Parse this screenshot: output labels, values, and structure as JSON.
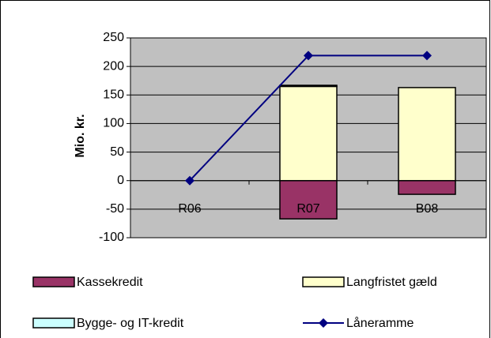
{
  "chart_data": {
    "type": "bar",
    "stacked": true,
    "y_label": "Mio. kr.",
    "categories": [
      "R06",
      "R07",
      "B08"
    ],
    "series": [
      {
        "name": "Kassekredit",
        "color": "#993366",
        "values": [
          0,
          -67,
          -24
        ]
      },
      {
        "name": "Langfristet gæld",
        "color": "#ffffcc",
        "values": [
          0,
          165,
          163
        ]
      },
      {
        "name": "Bygge- og IT-kredit",
        "color": "#ccffff",
        "values": [
          0,
          2,
          0
        ]
      },
      {
        "name": "Låneramme",
        "color": "#000080",
        "type": "line",
        "values": [
          0,
          219,
          219
        ]
      }
    ],
    "ylim": [
      -100,
      250
    ],
    "yticks": [
      -100,
      -50,
      0,
      50,
      100,
      150,
      200,
      250
    ],
    "grid": true,
    "plot_background": "#c0c0c0"
  }
}
